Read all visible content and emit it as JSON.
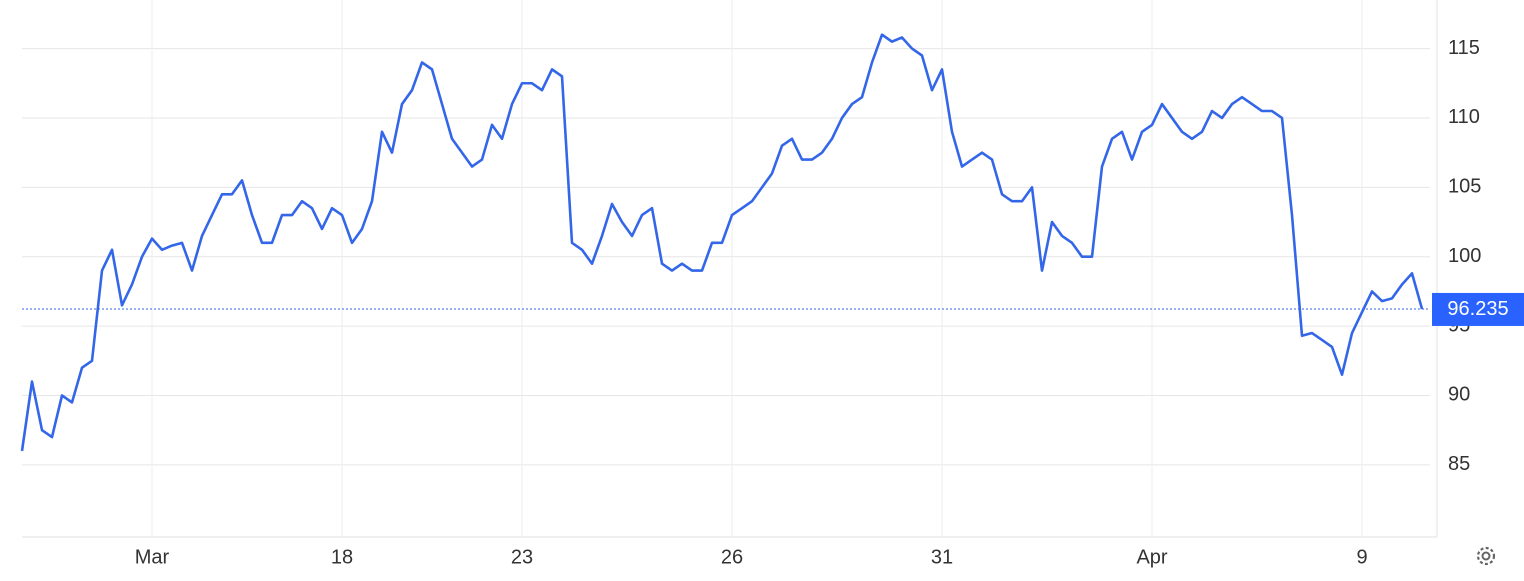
{
  "chart_data": {
    "type": "line",
    "color": "#3366e8",
    "grid": true,
    "ylim": [
      79.8,
      118.5
    ],
    "yticks": [
      85,
      90,
      95,
      100,
      105,
      110,
      115
    ],
    "categories": [
      null,
      null,
      null,
      null,
      null,
      null,
      null,
      null,
      null,
      null,
      null,
      null,
      null,
      "Mar",
      null,
      null,
      null,
      null,
      null,
      null,
      null,
      null,
      null,
      null,
      null,
      null,
      null,
      null,
      null,
      null,
      null,
      null,
      "18",
      null,
      null,
      null,
      null,
      null,
      null,
      null,
      null,
      null,
      null,
      null,
      null,
      null,
      null,
      null,
      null,
      null,
      "23",
      null,
      null,
      null,
      null,
      null,
      null,
      null,
      null,
      null,
      null,
      null,
      null,
      null,
      null,
      null,
      null,
      null,
      null,
      null,
      null,
      "26",
      null,
      null,
      null,
      null,
      null,
      null,
      null,
      null,
      null,
      null,
      null,
      null,
      null,
      null,
      null,
      null,
      null,
      null,
      null,
      null,
      "31",
      null,
      null,
      null,
      null,
      null,
      null,
      null,
      null,
      null,
      null,
      null,
      null,
      null,
      null,
      null,
      null,
      null,
      null,
      null,
      null,
      "Apr",
      null,
      null,
      null,
      null,
      null,
      null,
      null,
      null,
      null,
      null,
      null,
      null,
      null,
      null,
      null,
      null,
      null,
      null,
      null,
      null,
      "9",
      null,
      null,
      null,
      null,
      null,
      null
    ],
    "values": [
      86,
      91,
      87.5,
      87,
      90,
      89.5,
      92,
      92.5,
      99,
      100.5,
      96.5,
      98,
      100,
      101.3,
      100.5,
      100.8,
      101,
      99,
      101.5,
      103,
      104.5,
      104.5,
      105.5,
      103,
      101,
      101,
      103,
      103,
      104,
      103.5,
      102,
      103.5,
      103,
      101,
      102,
      104,
      109,
      107.5,
      111,
      112,
      114,
      113.5,
      111,
      108.5,
      107.5,
      106.5,
      107,
      109.5,
      108.5,
      111,
      112.5,
      112.5,
      112,
      113.5,
      113,
      101,
      100.5,
      99.5,
      101.5,
      103.8,
      102.5,
      101.5,
      103,
      103.5,
      99.5,
      99,
      99.5,
      99,
      99,
      101,
      101,
      103,
      103.5,
      104,
      105,
      106,
      108,
      108.5,
      107,
      107,
      107.5,
      108.5,
      110,
      111,
      111.5,
      114,
      116,
      115.5,
      115.8,
      115,
      114.5,
      112,
      113.5,
      109,
      106.5,
      107,
      107.5,
      107,
      104.5,
      104,
      104,
      105,
      99,
      102.5,
      101.5,
      101,
      100,
      100,
      106.5,
      108.5,
      109,
      107,
      109,
      109.5,
      111,
      110,
      109,
      108.5,
      109,
      110.5,
      110,
      111,
      111.5,
      111,
      110.5,
      110.5,
      110,
      103,
      94.3,
      94.5,
      94,
      93.5,
      91.5,
      94.5,
      96,
      97.5,
      96.8,
      97,
      98,
      98.8,
      96.235
    ]
  }
}
